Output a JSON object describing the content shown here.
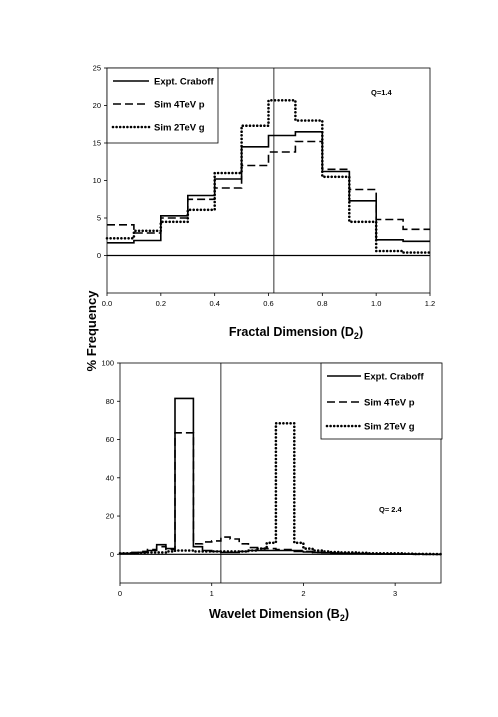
{
  "y_axis_label": "% Frequency",
  "chart_data": [
    {
      "type": "line",
      "step": true,
      "xlabel": "Fractal Dimension (D",
      "xlabel_sub": "2",
      "xlabel_end": ")",
      "xlim": [
        0.0,
        1.2
      ],
      "ylim": [
        -5,
        25
      ],
      "xticks": [
        "0.0",
        "0.2",
        "0.4",
        "0.6",
        "0.8",
        "1.0",
        "1.2"
      ],
      "xtick_values": [
        0.0,
        0.2,
        0.4,
        0.6,
        0.8,
        1.0,
        1.2
      ],
      "yticks": [
        "25",
        "20",
        "15",
        "10",
        "5",
        "0"
      ],
      "ytick_values": [
        25,
        20,
        15,
        10,
        5,
        0
      ],
      "annotation": "Q=1.4",
      "marker_line_x": 0.62,
      "bin_edges": [
        0.0,
        0.1,
        0.2,
        0.3,
        0.4,
        0.5,
        0.6,
        0.7,
        0.8,
        0.9,
        1.0,
        1.1,
        1.2
      ],
      "legend": [
        "Expt.  Craboff",
        "Sim  4TeV   p",
        "Sim  2TeV   g"
      ],
      "series": [
        {
          "name": "Expt.  Craboff",
          "style": "solid",
          "values": [
            1.7,
            2.0,
            5.3,
            8.0,
            10.2,
            14.5,
            16.0,
            16.5,
            11.2,
            7.3,
            2.1,
            1.9
          ]
        },
        {
          "name": "Sim  4TeV   p",
          "style": "dashed",
          "values": [
            4.1,
            3.0,
            5.0,
            7.5,
            9.0,
            12.0,
            13.8,
            15.2,
            11.5,
            8.8,
            4.8,
            3.5
          ]
        },
        {
          "name": "Sim  2TeV   g",
          "style": "dotted",
          "values": [
            2.3,
            3.3,
            4.5,
            6.1,
            11.0,
            17.3,
            20.7,
            18.0,
            10.5,
            4.5,
            0.6,
            0.4
          ]
        }
      ]
    },
    {
      "type": "line",
      "step": true,
      "xlabel": "Wavelet Dimension (B",
      "xlabel_sub": "2",
      "xlabel_end": ")",
      "xlim": [
        0,
        3.5
      ],
      "ylim": [
        -15,
        100
      ],
      "xticks": [
        "0",
        "1",
        "2",
        "3"
      ],
      "xtick_values": [
        0,
        1,
        2,
        3
      ],
      "yticks": [
        "100",
        "80",
        "60",
        "40",
        "20",
        "0"
      ],
      "ytick_values": [
        100,
        80,
        60,
        40,
        20,
        0
      ],
      "annotation": "Q= 2.4",
      "marker_line_x": 1.1,
      "bin_edges": [
        0.0,
        0.1,
        0.2,
        0.3,
        0.4,
        0.5,
        0.6,
        0.7,
        0.8,
        0.9,
        1.0,
        1.1,
        1.2,
        1.3,
        1.4,
        1.5,
        1.6,
        1.7,
        1.8,
        1.9,
        2.0,
        2.1,
        2.2,
        2.3,
        2.4,
        2.5,
        2.6,
        2.7,
        2.8,
        2.9,
        3.0,
        3.1,
        3.2,
        3.3,
        3.4,
        3.5
      ],
      "legend": [
        "Expt.  Craboff",
        "Sim  4TeV   p",
        "Sim  2TeV   g"
      ],
      "series": [
        {
          "name": "Expt.  Craboff",
          "style": "solid",
          "values": [
            0.3,
            0.5,
            1.0,
            2.0,
            5.0,
            3.0,
            81.5,
            81.5,
            4.0,
            2.0,
            1.5,
            1.0,
            1.0,
            1.5,
            2.0,
            2.0,
            2.0,
            2.0,
            2.0,
            1.5,
            1.2,
            1.0,
            0.8,
            0.6,
            0.5,
            0.4,
            0.3,
            0.2,
            0.2,
            0.1,
            0.1,
            0.1,
            0.1,
            0.0,
            0.0
          ]
        },
        {
          "name": "Sim  4TeV   p",
          "style": "dashed",
          "values": [
            0.5,
            1.0,
            1.5,
            2.5,
            4.0,
            2.5,
            63.5,
            63.5,
            5.5,
            6.5,
            7.0,
            9.0,
            8.0,
            5.5,
            3.5,
            3.0,
            3.0,
            2.5,
            2.5,
            2.0,
            1.5,
            1.0,
            1.0,
            0.8,
            0.6,
            0.5,
            0.4,
            0.3,
            0.2,
            0.2,
            0.1,
            0.1,
            0.0,
            0.0,
            0.0
          ]
        },
        {
          "name": "Sim  2TeV   g",
          "style": "dotted",
          "values": [
            0.5,
            0.5,
            0.8,
            1.0,
            1.0,
            1.5,
            2.0,
            2.0,
            1.5,
            1.5,
            1.5,
            1.5,
            1.5,
            1.5,
            2.0,
            3.0,
            6.0,
            68.5,
            68.5,
            6.0,
            3.0,
            2.0,
            1.5,
            1.2,
            1.0,
            1.0,
            0.8,
            0.5,
            0.5,
            0.5,
            0.5,
            0.3,
            0.2,
            0.2,
            0.1
          ]
        }
      ]
    }
  ]
}
